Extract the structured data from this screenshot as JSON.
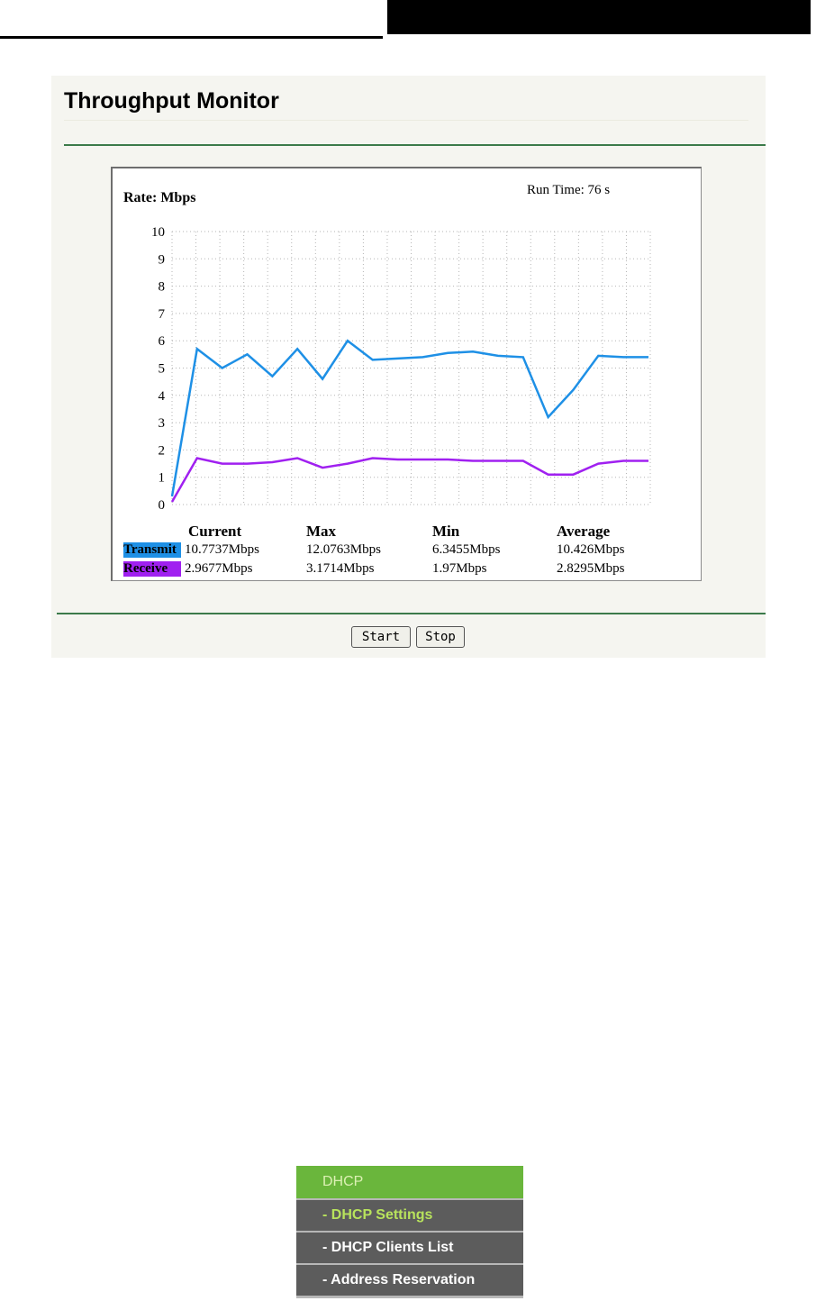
{
  "panel": {
    "title": "Throughput Monitor",
    "start_label": "Start",
    "stop_label": "Stop"
  },
  "graph": {
    "rate_label": "Rate: Mbps",
    "run_time_label": "Run Time: ",
    "run_time_value": "76 s",
    "stat_headers": [
      "Current",
      "Max",
      "Min",
      "Average"
    ],
    "transmit": {
      "label": "Transmit",
      "color": "#1e90e6",
      "values": [
        "10.7737Mbps",
        "12.0763Mbps",
        "6.3455Mbps",
        "10.426Mbps"
      ]
    },
    "receive": {
      "label": "Receive",
      "color": "#a020f0",
      "values": [
        "2.9677Mbps",
        "3.1714Mbps",
        "1.97Mbps",
        "2.8295Mbps"
      ]
    }
  },
  "chart_data": {
    "type": "line",
    "ylim": [
      0,
      10
    ],
    "y_ticks": [
      "0",
      "1",
      "2",
      "3",
      "4",
      "5",
      "6",
      "7",
      "8",
      "9",
      "10"
    ],
    "grid": true,
    "series": [
      {
        "name": "Transmit",
        "color": "#1e90e6",
        "values": [
          0.3,
          5.7,
          5.0,
          5.5,
          4.7,
          5.7,
          4.6,
          6.0,
          5.3,
          5.35,
          5.4,
          5.55,
          5.6,
          5.45,
          5.4,
          3.2,
          4.2,
          5.45,
          5.4,
          5.4
        ]
      },
      {
        "name": "Receive",
        "color": "#a020f0",
        "values": [
          0.1,
          1.7,
          1.5,
          1.5,
          1.55,
          1.7,
          1.35,
          1.5,
          1.7,
          1.65,
          1.65,
          1.65,
          1.6,
          1.6,
          1.6,
          1.1,
          1.1,
          1.5,
          1.6,
          1.6
        ]
      }
    ]
  },
  "menu": {
    "header": "DHCP",
    "items": [
      {
        "label": "- DHCP Settings",
        "active": true
      },
      {
        "label": "- DHCP Clients List",
        "active": false
      },
      {
        "label": "- Address Reservation",
        "active": false
      }
    ]
  }
}
